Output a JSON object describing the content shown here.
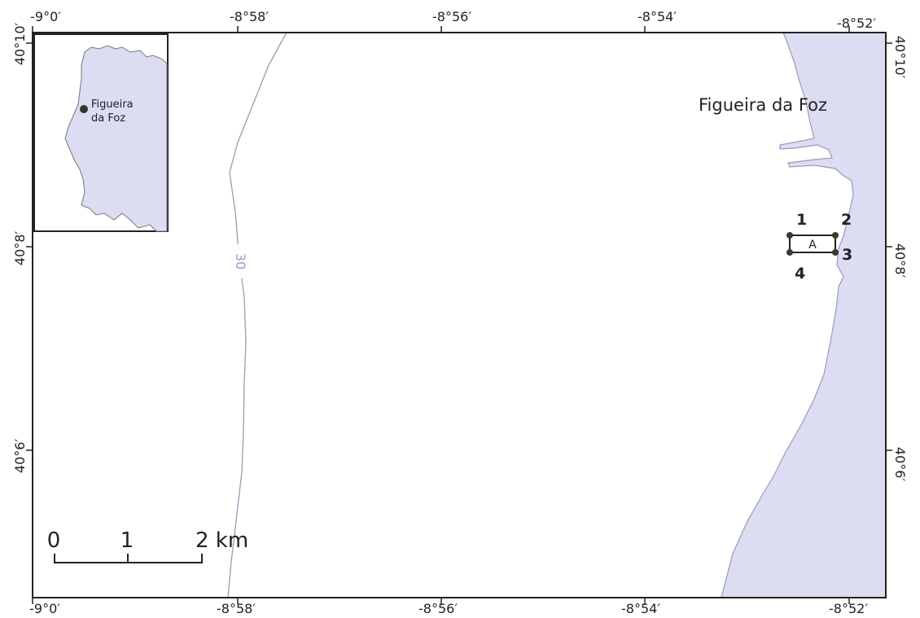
{
  "map": {
    "colors": {
      "land": "#dcdcf2",
      "coast": "#9a9ab8",
      "frame": "#222222",
      "point": "#3b3b2a"
    },
    "place_label": "Figueira da Foz",
    "contour_label": "30",
    "top_ticks": [
      "-9°0′",
      "-8°58′",
      "-8°56′",
      "-8°54′",
      "-8°52′"
    ],
    "bottom_ticks": [
      "-9°0′",
      "-8°58′",
      "-8°56′",
      "-8°54′",
      "-8°52′"
    ],
    "left_ticks": [
      "40°10′",
      "40°8′",
      "40°6′"
    ],
    "right_ticks": [
      "40°10′",
      "40°8′",
      "40°6′"
    ],
    "study_area": {
      "box_label": "A",
      "corner_labels": [
        "1",
        "2",
        "3",
        "4"
      ]
    }
  },
  "inset": {
    "label_line1": "Figueira",
    "label_line2": "da Foz"
  },
  "scale_bar": {
    "labels": [
      "0",
      "1",
      "2 km"
    ]
  }
}
